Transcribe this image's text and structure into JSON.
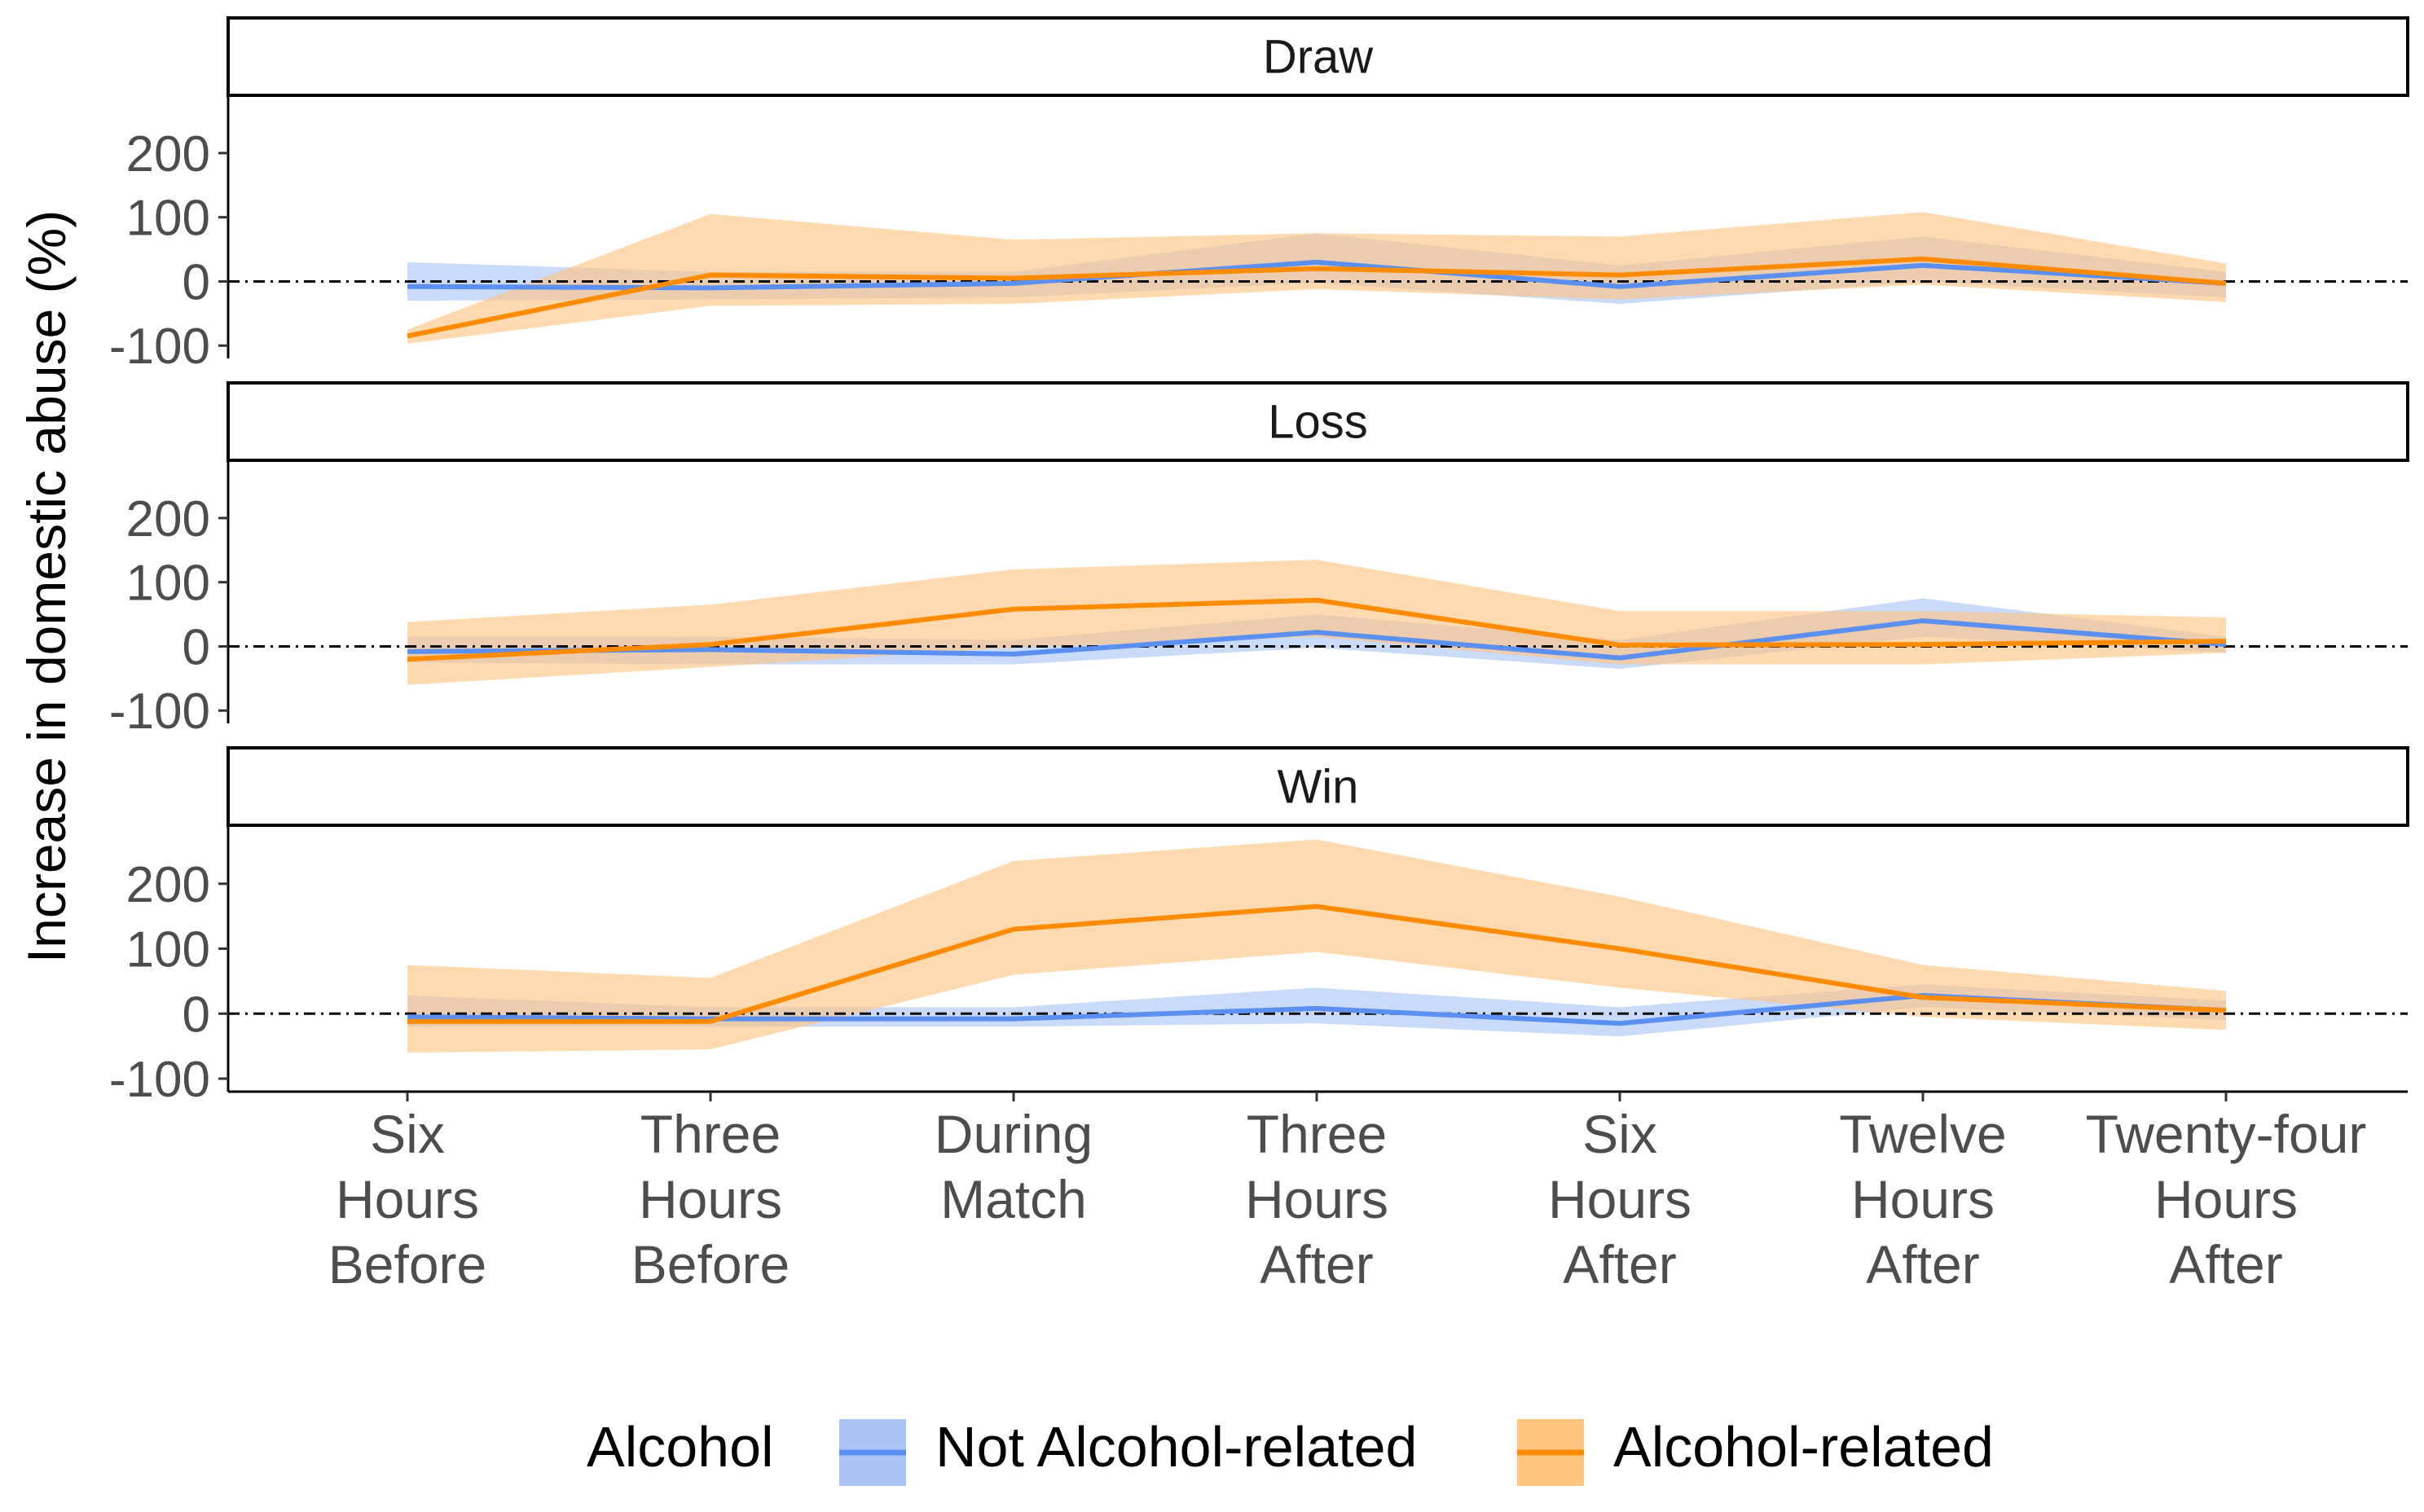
{
  "chart_data": {
    "type": "line",
    "ylabel": "Increase in domestic abuse (%)",
    "x_categories": [
      [
        "Six",
        "Hours",
        "Before"
      ],
      [
        "Three",
        "Hours",
        "Before"
      ],
      [
        "During",
        "Match"
      ],
      [
        "Three",
        "Hours",
        "After"
      ],
      [
        "Six",
        "Hours",
        "After"
      ],
      [
        "Twelve",
        "Hours",
        "After"
      ],
      [
        "Twenty-four",
        "Hours",
        "After"
      ]
    ],
    "y_ticks": [
      -100,
      0,
      100,
      200
    ],
    "ylim": [
      -120,
      290
    ],
    "reference_line": 0,
    "legend": {
      "title": "Alcohol",
      "position": "bottom",
      "entries": [
        "Not Alcohol-related",
        "Alcohol-related"
      ]
    },
    "colors": {
      "Not Alcohol-related": {
        "line": "#5b8ff0",
        "band": "#a9c4f5"
      },
      "Alcohol-related": {
        "line": "#ff8c00",
        "band": "#ffc47f"
      }
    },
    "panels": [
      {
        "title": "Draw",
        "series": [
          {
            "name": "Not Alcohol-related",
            "values": [
              -8,
              -10,
              -3,
              30,
              -8,
              25,
              -3
            ],
            "lower": [
              -30,
              -28,
              -25,
              -2,
              -35,
              0,
              -25
            ],
            "upper": [
              30,
              15,
              15,
              75,
              25,
              70,
              15
            ]
          },
          {
            "name": "Alcohol-related",
            "values": [
              -85,
              10,
              5,
              20,
              10,
              35,
              -3
            ],
            "lower": [
              -97,
              -38,
              -35,
              -12,
              -28,
              -5,
              -32
            ],
            "upper": [
              -75,
              105,
              65,
              75,
              70,
              108,
              28
            ]
          }
        ]
      },
      {
        "title": "Loss",
        "series": [
          {
            "name": "Not Alcohol-related",
            "values": [
              -8,
              -5,
              -12,
              22,
              -18,
              40,
              3
            ],
            "lower": [
              -25,
              -28,
              -28,
              -2,
              -35,
              15,
              -10
            ],
            "upper": [
              15,
              15,
              10,
              50,
              10,
              75,
              15
            ]
          },
          {
            "name": "Alcohol-related",
            "values": [
              -20,
              3,
              58,
              72,
              2,
              3,
              8
            ],
            "lower": [
              -60,
              -32,
              -2,
              15,
              -28,
              -28,
              -10
            ],
            "upper": [
              38,
              65,
              120,
              135,
              55,
              55,
              45
            ]
          }
        ]
      },
      {
        "title": "Win",
        "series": [
          {
            "name": "Not Alcohol-related",
            "values": [
              -5,
              -8,
              -8,
              8,
              -15,
              28,
              5
            ],
            "lower": [
              -20,
              -20,
              -20,
              -15,
              -35,
              10,
              -10
            ],
            "upper": [
              28,
              10,
              10,
              40,
              10,
              45,
              20
            ]
          },
          {
            "name": "Alcohol-related",
            "values": [
              -12,
              -12,
              130,
              165,
              100,
              25,
              5
            ],
            "lower": [
              -60,
              -55,
              60,
              95,
              40,
              -5,
              -25
            ],
            "upper": [
              75,
              55,
              235,
              268,
              180,
              75,
              35
            ]
          }
        ]
      }
    ]
  }
}
